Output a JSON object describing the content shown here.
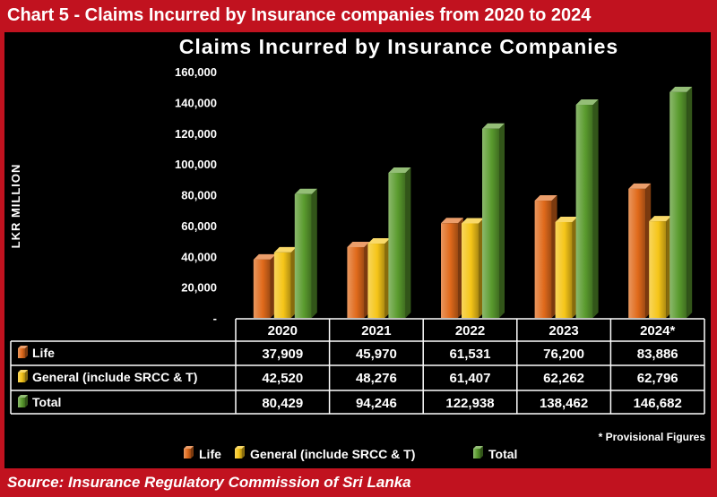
{
  "header": {
    "title": "Chart 5 - Claims Incurred by Insurance companies from 2020 to 2024"
  },
  "footer": {
    "source": "Source: Insurance Regulatory Commission of Sri Lanka"
  },
  "colors": {
    "frame": "#c1121f",
    "background": "#000000",
    "life": "#e06a1b",
    "general": "#f5c518",
    "total": "#5a9b2e"
  },
  "chart_data": {
    "type": "bar",
    "title": "Claims Incurred by Insurance Companies",
    "ylabel": "LKR MILLION",
    "xlabel": "",
    "ylim": [
      0,
      160000
    ],
    "yticks": [
      "-",
      "20,000",
      "40,000",
      "60,000",
      "80,000",
      "100,000",
      "120,000",
      "140,000",
      "160,000"
    ],
    "categories": [
      "2020",
      "2021",
      "2022",
      "2023",
      "2024*"
    ],
    "series": [
      {
        "name": "Life",
        "values": [
          37909,
          45970,
          61531,
          76200,
          83886
        ],
        "labels": [
          "37,909",
          "45,970",
          "61,531",
          "76,200",
          "83,886"
        ]
      },
      {
        "name": "General (include SRCC & T)",
        "values": [
          42520,
          48276,
          61407,
          62262,
          62796
        ],
        "labels": [
          "42,520",
          "48,276",
          "61,407",
          "62,262",
          "62,796"
        ]
      },
      {
        "name": "Total",
        "values": [
          80429,
          94246,
          122938,
          138462,
          146682
        ],
        "labels": [
          "80,429",
          "94,246",
          "122,938",
          "138,462",
          "146,682"
        ]
      }
    ],
    "note": "* Provisional Figures",
    "legend": "bottom",
    "grid": false
  }
}
